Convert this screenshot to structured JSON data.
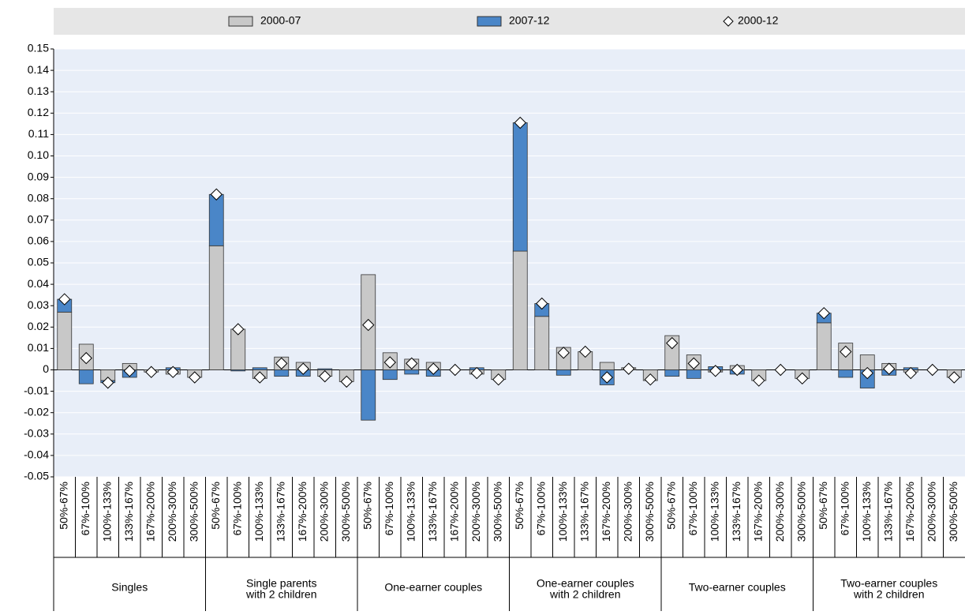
{
  "chart_data": {
    "type": "bar",
    "stacked": true,
    "categories": [
      "50%-67%",
      "67%-100%",
      "100%-133%",
      "133%-167%",
      "167%-200%",
      "200%-300%",
      "300%-500%",
      "50%-67%",
      "67%-100%",
      "100%-133%",
      "133%-167%",
      "167%-200%",
      "200%-300%",
      "300%-500%",
      "50%-67%",
      "67%-100%",
      "100%-133%",
      "133%-167%",
      "167%-200%",
      "200%-300%",
      "300%-500%",
      "50%-67%",
      "67%-100%",
      "100%-133%",
      "133%-167%",
      "167%-200%",
      "200%-300%",
      "300%-500%",
      "50%-67%",
      "67%-100%",
      "100%-133%",
      "133%-167%",
      "167%-200%",
      "200%-300%",
      "300%-500%",
      "50%-67%",
      "67%-100%",
      "100%-133%",
      "133%-167%",
      "167%-200%",
      "200%-300%",
      "300%-500%"
    ],
    "groups": [
      [
        "Singles"
      ],
      [
        "Single parents",
        "with 2 children"
      ],
      [
        "One-earner couples"
      ],
      [
        "One-earner couples",
        "with 2 children"
      ],
      [
        "Two-earner couples"
      ],
      [
        "Two-earner couples",
        "with 2 children"
      ]
    ],
    "series": [
      {
        "name": "2000-07",
        "type": "bar",
        "color": "#c8c8c8",
        "values": [
          0.027,
          0.012,
          -0.005,
          0.003,
          -0.001,
          -0.002,
          -0.0035,
          0.058,
          0.019,
          -0.004,
          0.006,
          0.0035,
          -0.003,
          -0.0055,
          0.0445,
          0.008,
          0.005,
          0.0035,
          0,
          -0.002,
          -0.0045,
          0.0555,
          0.025,
          0.0105,
          0.0085,
          0.0035,
          0.001,
          -0.005,
          0.016,
          0.007,
          -0.001,
          0.002,
          -0.005,
          0,
          -0.004,
          0.022,
          0.0125,
          0.007,
          0.003,
          -0.001,
          0,
          -0.0035
        ]
      },
      {
        "name": "2007-12",
        "type": "bar",
        "color": "#4a86c8",
        "values": [
          0.006,
          -0.0065,
          -0.001,
          -0.0035,
          0,
          0.001,
          0,
          0.024,
          -0.0005,
          0.001,
          -0.003,
          -0.003,
          0.0005,
          0,
          -0.0235,
          -0.0045,
          -0.002,
          -0.003,
          0,
          0.001,
          0,
          0.06,
          0.006,
          -0.0025,
          0,
          -0.007,
          0,
          0,
          -0.003,
          -0.004,
          0.0015,
          -0.002,
          0,
          0,
          0,
          0.0045,
          -0.0035,
          -0.0085,
          -0.0025,
          0.001,
          0,
          0
        ]
      },
      {
        "name": "2000-12",
        "type": "marker",
        "color": "#ffffff",
        "values": [
          0.033,
          0.0055,
          -0.006,
          -0.0005,
          -0.001,
          -0.001,
          -0.0035,
          0.082,
          0.019,
          -0.0035,
          0.003,
          0.0005,
          -0.003,
          -0.0055,
          0.021,
          0.0035,
          0.003,
          0.0005,
          0,
          -0.0015,
          -0.0045,
          0.1155,
          0.031,
          0.008,
          0.0085,
          -0.0035,
          0.0005,
          -0.0045,
          0.0125,
          0.003,
          -0.0005,
          0,
          -0.005,
          0,
          -0.004,
          0.0265,
          0.0085,
          -0.0015,
          0.0005,
          -0.0015,
          0,
          -0.0035
        ]
      }
    ],
    "ylim": [
      -0.05,
      0.15
    ],
    "yticks": [
      -0.05,
      -0.04,
      -0.03,
      -0.02,
      -0.01,
      0,
      0.01,
      0.02,
      0.03,
      0.04,
      0.05,
      0.06,
      0.07,
      0.08,
      0.09,
      {
        "value": 0.1,
        "label": "0.10"
      },
      0.11,
      0.12,
      0.13,
      0.14,
      0.15
    ],
    "grid": true
  }
}
